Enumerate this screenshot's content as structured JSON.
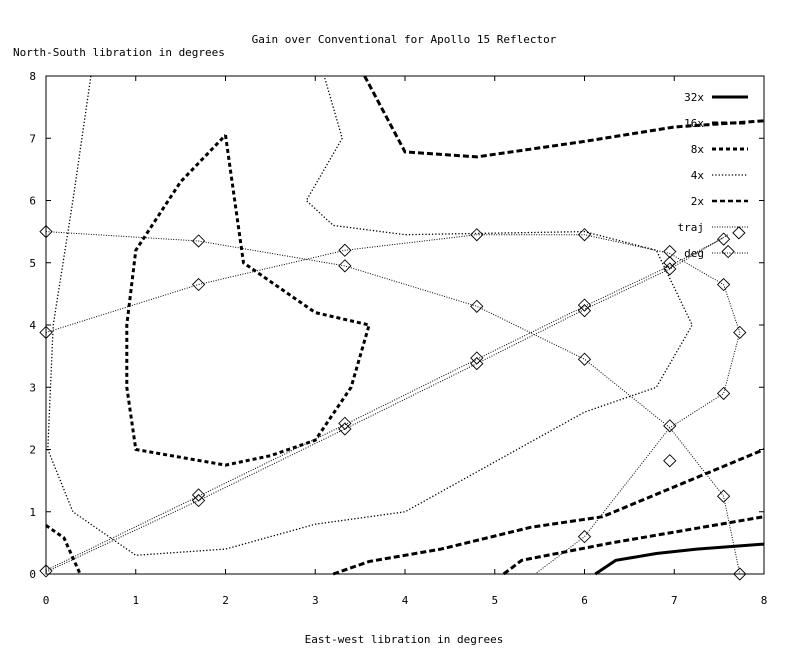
{
  "chart_data": {
    "type": "line",
    "title": "Gain over Conventional for Apollo 15 Reflector",
    "xlabel": "East-west libration in degrees",
    "ylabel": "North-South libration in degrees",
    "xlim": [
      0,
      8
    ],
    "ylim": [
      0,
      8
    ],
    "xticks": [
      "0",
      "1",
      "2",
      "3",
      "4",
      "5",
      "6",
      "7",
      "8"
    ],
    "yticks": [
      "0",
      "1",
      "2",
      "3",
      "4",
      "5",
      "6",
      "7",
      "8"
    ],
    "grid": false,
    "legend_position": "top-right",
    "series": [
      {
        "name": "32x",
        "style": "solid-thick",
        "segments": [
          [
            [
              6.12,
              0
            ],
            [
              6.35,
              0.22
            ],
            [
              6.8,
              0.33
            ],
            [
              7.25,
              0.4
            ],
            [
              8.0,
              0.48
            ]
          ]
        ]
      },
      {
        "name": "16x",
        "style": "dash-long",
        "segments": [
          [
            [
              3.55,
              8
            ],
            [
              4.0,
              6.78
            ],
            [
              4.8,
              6.7
            ],
            [
              6.0,
              6.95
            ],
            [
              7.0,
              7.18
            ],
            [
              8.0,
              7.28
            ]
          ],
          [
            [
              3.2,
              0
            ],
            [
              3.6,
              0.2
            ],
            [
              4.4,
              0.4
            ],
            [
              5.4,
              0.75
            ],
            [
              6.2,
              0.92
            ],
            [
              8.0,
              2.0
            ]
          ],
          [
            [
              5.1,
              0
            ],
            [
              5.3,
              0.22
            ],
            [
              6.3,
              0.5
            ],
            [
              8.0,
              0.92
            ]
          ]
        ]
      },
      {
        "name": "8x",
        "style": "dash-thick",
        "segments": [
          [
            [
              2.0,
              7.05
            ],
            [
              2.2,
              5.0
            ],
            [
              3.0,
              4.2
            ],
            [
              3.6,
              4.0
            ],
            [
              3.4,
              3.0
            ],
            [
              3.0,
              2.15
            ],
            [
              2.5,
              1.9
            ],
            [
              2.0,
              1.75
            ],
            [
              1.0,
              2.0
            ],
            [
              0.9,
              3.0
            ],
            [
              0.9,
              4.0
            ],
            [
              1.0,
              5.2
            ],
            [
              1.5,
              6.3
            ],
            [
              2.0,
              7.05
            ]
          ],
          [
            [
              0,
              0.78
            ],
            [
              0.2,
              0.58
            ],
            [
              0.38,
              0
            ]
          ]
        ]
      },
      {
        "name": "4x",
        "style": "dotted",
        "segments": [
          [
            [
              0.5,
              8
            ],
            [
              0.3,
              6.0
            ],
            [
              0.08,
              4.0
            ],
            [
              0.02,
              2.0
            ],
            [
              0.3,
              1.0
            ],
            [
              1.0,
              0.3
            ],
            [
              2.0,
              0.4
            ],
            [
              3.0,
              0.8
            ],
            [
              4.0,
              1.0
            ],
            [
              5.0,
              1.8
            ],
            [
              6.0,
              2.6
            ],
            [
              6.8,
              3.0
            ],
            [
              7.2,
              4.0
            ],
            [
              6.8,
              5.2
            ],
            [
              6.0,
              5.5
            ],
            [
              4.0,
              5.45
            ],
            [
              3.2,
              5.6
            ],
            [
              2.9,
              6.0
            ],
            [
              3.3,
              7.0
            ],
            [
              3.1,
              8.0
            ]
          ]
        ]
      },
      {
        "name": "2x",
        "style": "dash-medium",
        "segments": []
      },
      {
        "name": "traj",
        "style": "dotted-line-diamond",
        "segments": [
          [
            [
              0,
              3.88
            ],
            [
              1.7,
              4.65
            ],
            [
              3.33,
              5.2
            ],
            [
              4.8,
              5.45
            ],
            [
              6.0,
              5.45
            ],
            [
              6.95,
              5.15
            ],
            [
              7.55,
              4.65
            ],
            [
              7.73,
              3.88
            ],
            [
              7.55,
              2.9
            ],
            [
              6.95,
              2.35
            ],
            [
              6.0,
              0.6
            ],
            [
              5.45,
              0
            ]
          ],
          [
            [
              0,
              5.5
            ],
            [
              1.7,
              5.35
            ],
            [
              3.33,
              4.95
            ],
            [
              4.8,
              4.3
            ],
            [
              6.0,
              3.45
            ],
            [
              6.95,
              2.35
            ],
            [
              7.55,
              1.25
            ],
            [
              7.73,
              0
            ]
          ],
          [
            [
              0,
              0.06
            ],
            [
              1.7,
              1.25
            ],
            [
              3.33,
              2.4
            ],
            [
              4.8,
              3.45
            ],
            [
              6.0,
              4.3
            ],
            [
              6.95,
              4.95
            ],
            [
              7.55,
              5.4
            ]
          ],
          [
            [
              0,
              0.03
            ],
            [
              1.7,
              1.18
            ],
            [
              3.33,
              2.33
            ],
            [
              4.8,
              3.38
            ],
            [
              6.0,
              4.25
            ],
            [
              6.95,
              4.9
            ],
            [
              7.6,
              5.45
            ]
          ]
        ],
        "markers": [
          [
            0,
            0.05
          ],
          [
            1.7,
            1.18
          ],
          [
            1.7,
            1.27
          ],
          [
            3.33,
            2.33
          ],
          [
            3.33,
            2.42
          ],
          [
            4.8,
            3.38
          ],
          [
            4.8,
            3.47
          ],
          [
            6.0,
            4.23
          ],
          [
            6.0,
            4.32
          ],
          [
            6.95,
            4.9
          ],
          [
            6.95,
            5.0
          ],
          [
            7.55,
            5.38
          ],
          [
            7.72,
            5.48
          ],
          [
            7.6,
            5.18
          ],
          [
            0,
            5.5
          ],
          [
            1.7,
            5.35
          ],
          [
            3.33,
            4.95
          ],
          [
            4.8,
            4.3
          ],
          [
            6.0,
            3.45
          ],
          [
            6.95,
            2.38
          ],
          [
            7.55,
            1.25
          ],
          [
            7.73,
            0
          ],
          [
            0,
            3.88
          ],
          [
            1.7,
            4.65
          ],
          [
            3.33,
            5.2
          ],
          [
            4.8,
            5.45
          ],
          [
            6.0,
            5.45
          ],
          [
            6.95,
            5.18
          ],
          [
            7.55,
            4.65
          ],
          [
            7.73,
            3.88
          ],
          [
            7.55,
            2.9
          ],
          [
            6.95,
            1.82
          ],
          [
            6.0,
            0.6
          ]
        ]
      },
      {
        "name": "deg",
        "style": "dotted-line",
        "segments": []
      }
    ]
  }
}
